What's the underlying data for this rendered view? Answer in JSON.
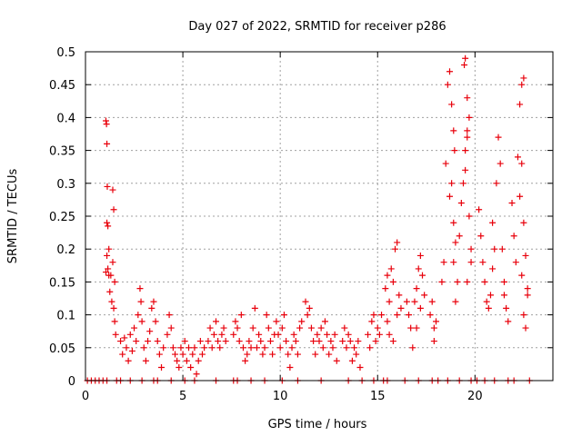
{
  "chart_data": {
    "type": "scatter",
    "title": "Day 027 of 2022, SRMTID for receiver p286",
    "xlabel": "GPS time / hours",
    "ylabel": "SRMTID / TECUs",
    "xlim": [
      0,
      24
    ],
    "ylim": [
      0,
      0.5
    ],
    "xticks": [
      0,
      5,
      10,
      15,
      20
    ],
    "xtick_labels": [
      "0",
      "5",
      "10",
      "15",
      "20"
    ],
    "yticks": [
      0,
      0.05,
      0.1,
      0.15,
      0.2,
      0.25,
      0.3,
      0.35,
      0.4,
      0.45,
      0.5
    ],
    "ytick_labels": [
      "0",
      "0.05",
      "0.1",
      "0.15",
      "0.2",
      "0.25",
      "0.3",
      "0.35",
      "0.4",
      "0.45",
      "0.5"
    ],
    "grid": true,
    "marker": "+",
    "color": "#e8000b",
    "series": [
      {
        "name": "SRMTID",
        "points": [
          [
            0.1,
            0
          ],
          [
            0.3,
            0
          ],
          [
            0.5,
            0
          ],
          [
            0.7,
            0
          ],
          [
            0.9,
            0
          ],
          [
            1.1,
            0
          ],
          [
            1.6,
            0
          ],
          [
            1.8,
            0
          ],
          [
            2.3,
            0
          ],
          [
            2.9,
            0
          ],
          [
            3.5,
            0
          ],
          [
            3.7,
            0
          ],
          [
            4.4,
            0
          ],
          [
            5.1,
            0
          ],
          [
            5.6,
            0
          ],
          [
            6.7,
            0
          ],
          [
            7.6,
            0
          ],
          [
            7.8,
            0
          ],
          [
            8.5,
            0
          ],
          [
            9.2,
            0
          ],
          [
            10.1,
            0
          ],
          [
            10.9,
            0
          ],
          [
            12.1,
            0
          ],
          [
            13.5,
            0
          ],
          [
            14.2,
            0
          ],
          [
            14.8,
            0
          ],
          [
            15.3,
            0
          ],
          [
            15.5,
            0
          ],
          [
            16.4,
            0
          ],
          [
            17.1,
            0
          ],
          [
            17.8,
            0
          ],
          [
            18.1,
            0
          ],
          [
            18.6,
            0
          ],
          [
            19.2,
            0
          ],
          [
            19.8,
            0
          ],
          [
            20.1,
            0
          ],
          [
            20.5,
            0
          ],
          [
            21.0,
            0
          ],
          [
            21.7,
            0
          ],
          [
            22.0,
            0
          ],
          [
            22.8,
            0
          ],
          [
            1.05,
            0.395
          ],
          [
            1.08,
            0.39
          ],
          [
            1.1,
            0.36
          ],
          [
            1.12,
            0.295
          ],
          [
            1.1,
            0.24
          ],
          [
            1.15,
            0.235
          ],
          [
            1.2,
            0.2
          ],
          [
            1.1,
            0.19
          ],
          [
            1.15,
            0.17
          ],
          [
            1.05,
            0.165
          ],
          [
            1.2,
            0.16
          ],
          [
            1.3,
            0.16
          ],
          [
            1.25,
            0.135
          ],
          [
            1.4,
            0.29
          ],
          [
            1.45,
            0.26
          ],
          [
            1.4,
            0.18
          ],
          [
            1.5,
            0.15
          ],
          [
            1.35,
            0.12
          ],
          [
            1.45,
            0.11
          ],
          [
            1.5,
            0.09
          ],
          [
            1.55,
            0.07
          ],
          [
            1.8,
            0.06
          ],
          [
            1.9,
            0.04
          ],
          [
            2.0,
            0.065
          ],
          [
            2.1,
            0.05
          ],
          [
            2.2,
            0.03
          ],
          [
            2.3,
            0.07
          ],
          [
            2.4,
            0.045
          ],
          [
            2.5,
            0.08
          ],
          [
            2.6,
            0.06
          ],
          [
            2.7,
            0.1
          ],
          [
            2.8,
            0.14
          ],
          [
            2.85,
            0.12
          ],
          [
            2.9,
            0.09
          ],
          [
            3.0,
            0.05
          ],
          [
            3.1,
            0.03
          ],
          [
            3.2,
            0.06
          ],
          [
            3.3,
            0.075
          ],
          [
            3.4,
            0.11
          ],
          [
            3.5,
            0.12
          ],
          [
            3.6,
            0.09
          ],
          [
            3.7,
            0.06
          ],
          [
            3.8,
            0.04
          ],
          [
            3.9,
            0.02
          ],
          [
            4.0,
            0.05
          ],
          [
            4.2,
            0.07
          ],
          [
            4.3,
            0.1
          ],
          [
            4.4,
            0.08
          ],
          [
            4.5,
            0.05
          ],
          [
            4.6,
            0.04
          ],
          [
            4.7,
            0.03
          ],
          [
            4.8,
            0.02
          ],
          [
            4.9,
            0.05
          ],
          [
            5.0,
            0.04
          ],
          [
            5.1,
            0.06
          ],
          [
            5.2,
            0.03
          ],
          [
            5.3,
            0.05
          ],
          [
            5.4,
            0.02
          ],
          [
            5.5,
            0.04
          ],
          [
            5.6,
            0.05
          ],
          [
            5.7,
            0.01
          ],
          [
            5.8,
            0.03
          ],
          [
            5.9,
            0.06
          ],
          [
            6.0,
            0.04
          ],
          [
            6.1,
            0.05
          ],
          [
            6.3,
            0.06
          ],
          [
            6.4,
            0.08
          ],
          [
            6.5,
            0.05
          ],
          [
            6.6,
            0.07
          ],
          [
            6.7,
            0.09
          ],
          [
            6.8,
            0.06
          ],
          [
            6.9,
            0.05
          ],
          [
            7.0,
            0.07
          ],
          [
            7.1,
            0.08
          ],
          [
            7.2,
            0.06
          ],
          [
            7.6,
            0.07
          ],
          [
            7.7,
            0.09
          ],
          [
            7.8,
            0.08
          ],
          [
            7.9,
            0.06
          ],
          [
            8.0,
            0.1
          ],
          [
            8.1,
            0.05
          ],
          [
            8.2,
            0.03
          ],
          [
            8.3,
            0.04
          ],
          [
            8.4,
            0.06
          ],
          [
            8.5,
            0.05
          ],
          [
            8.6,
            0.08
          ],
          [
            8.7,
            0.11
          ],
          [
            8.8,
            0.05
          ],
          [
            8.9,
            0.07
          ],
          [
            9.0,
            0.06
          ],
          [
            9.1,
            0.04
          ],
          [
            9.2,
            0.05
          ],
          [
            9.3,
            0.1
          ],
          [
            9.4,
            0.08
          ],
          [
            9.5,
            0.06
          ],
          [
            9.6,
            0.04
          ],
          [
            9.7,
            0.07
          ],
          [
            9.8,
            0.09
          ],
          [
            9.9,
            0.07
          ],
          [
            10.0,
            0.05
          ],
          [
            10.1,
            0.08
          ],
          [
            10.2,
            0.1
          ],
          [
            10.3,
            0.06
          ],
          [
            10.4,
            0.04
          ],
          [
            10.5,
            0.02
          ],
          [
            10.6,
            0.05
          ],
          [
            10.7,
            0.07
          ],
          [
            10.8,
            0.06
          ],
          [
            10.9,
            0.04
          ],
          [
            11.0,
            0.08
          ],
          [
            11.1,
            0.09
          ],
          [
            11.3,
            0.12
          ],
          [
            11.4,
            0.1
          ],
          [
            11.5,
            0.11
          ],
          [
            11.6,
            0.08
          ],
          [
            11.7,
            0.06
          ],
          [
            11.8,
            0.04
          ],
          [
            11.9,
            0.07
          ],
          [
            12.0,
            0.06
          ],
          [
            12.1,
            0.08
          ],
          [
            12.2,
            0.05
          ],
          [
            12.3,
            0.09
          ],
          [
            12.4,
            0.07
          ],
          [
            12.5,
            0.04
          ],
          [
            12.6,
            0.06
          ],
          [
            12.7,
            0.05
          ],
          [
            12.8,
            0.07
          ],
          [
            12.9,
            0.03
          ],
          [
            13.2,
            0.06
          ],
          [
            13.3,
            0.08
          ],
          [
            13.4,
            0.05
          ],
          [
            13.5,
            0.07
          ],
          [
            13.6,
            0.06
          ],
          [
            13.7,
            0.03
          ],
          [
            13.8,
            0.05
          ],
          [
            13.9,
            0.04
          ],
          [
            14.0,
            0.06
          ],
          [
            14.1,
            0.02
          ],
          [
            14.5,
            0.07
          ],
          [
            14.6,
            0.05
          ],
          [
            14.7,
            0.09
          ],
          [
            14.8,
            0.1
          ],
          [
            14.9,
            0.06
          ],
          [
            15.0,
            0.08
          ],
          [
            15.1,
            0.07
          ],
          [
            15.2,
            0.1
          ],
          [
            15.4,
            0.14
          ],
          [
            15.5,
            0.16
          ],
          [
            15.6,
            0.12
          ],
          [
            15.7,
            0.17
          ],
          [
            15.8,
            0.15
          ],
          [
            15.9,
            0.2
          ],
          [
            16.0,
            0.21
          ],
          [
            16.1,
            0.13
          ],
          [
            16.2,
            0.11
          ],
          [
            15.5,
            0.09
          ],
          [
            15.6,
            0.07
          ],
          [
            15.8,
            0.06
          ],
          [
            16.0,
            0.1
          ],
          [
            16.5,
            0.12
          ],
          [
            16.6,
            0.1
          ],
          [
            16.7,
            0.08
          ],
          [
            16.8,
            0.05
          ],
          [
            16.9,
            0.12
          ],
          [
            17.0,
            0.14
          ],
          [
            17.1,
            0.17
          ],
          [
            17.2,
            0.19
          ],
          [
            17.3,
            0.16
          ],
          [
            17.4,
            0.13
          ],
          [
            17.2,
            0.11
          ],
          [
            17.0,
            0.08
          ],
          [
            17.7,
            0.1
          ],
          [
            17.8,
            0.12
          ],
          [
            17.9,
            0.08
          ],
          [
            18.0,
            0.09
          ],
          [
            17.9,
            0.06
          ],
          [
            18.3,
            0.15
          ],
          [
            18.4,
            0.18
          ],
          [
            18.5,
            0.33
          ],
          [
            18.6,
            0.45
          ],
          [
            18.7,
            0.47
          ],
          [
            18.8,
            0.42
          ],
          [
            18.9,
            0.38
          ],
          [
            18.95,
            0.35
          ],
          [
            18.8,
            0.3
          ],
          [
            18.7,
            0.28
          ],
          [
            18.9,
            0.24
          ],
          [
            19.0,
            0.21
          ],
          [
            18.9,
            0.18
          ],
          [
            19.1,
            0.15
          ],
          [
            19.0,
            0.12
          ],
          [
            19.2,
            0.22
          ],
          [
            19.3,
            0.27
          ],
          [
            19.4,
            0.3
          ],
          [
            19.5,
            0.35
          ],
          [
            19.6,
            0.38
          ],
          [
            19.7,
            0.4
          ],
          [
            19.6,
            0.37
          ],
          [
            19.5,
            0.32
          ],
          [
            19.7,
            0.25
          ],
          [
            19.8,
            0.2
          ],
          [
            19.6,
            0.15
          ],
          [
            19.5,
            0.49
          ],
          [
            19.45,
            0.48
          ],
          [
            19.6,
            0.43
          ],
          [
            19.8,
            0.18
          ],
          [
            20.2,
            0.26
          ],
          [
            20.3,
            0.22
          ],
          [
            20.4,
            0.18
          ],
          [
            20.5,
            0.15
          ],
          [
            20.6,
            0.12
          ],
          [
            20.7,
            0.11
          ],
          [
            20.8,
            0.13
          ],
          [
            20.9,
            0.17
          ],
          [
            21.0,
            0.2
          ],
          [
            20.9,
            0.24
          ],
          [
            21.1,
            0.3
          ],
          [
            21.2,
            0.37
          ],
          [
            21.3,
            0.33
          ],
          [
            21.4,
            0.2
          ],
          [
            21.5,
            0.15
          ],
          [
            21.6,
            0.11
          ],
          [
            21.7,
            0.09
          ],
          [
            21.5,
            0.13
          ],
          [
            21.9,
            0.27
          ],
          [
            22.0,
            0.22
          ],
          [
            22.1,
            0.18
          ],
          [
            22.2,
            0.34
          ],
          [
            22.3,
            0.42
          ],
          [
            22.4,
            0.45
          ],
          [
            22.5,
            0.46
          ],
          [
            22.4,
            0.33
          ],
          [
            22.3,
            0.28
          ],
          [
            22.5,
            0.24
          ],
          [
            22.6,
            0.19
          ],
          [
            22.7,
            0.14
          ],
          [
            22.5,
            0.1
          ],
          [
            22.6,
            0.08
          ],
          [
            22.4,
            0.16
          ],
          [
            22.7,
            0.13
          ]
        ]
      }
    ]
  }
}
